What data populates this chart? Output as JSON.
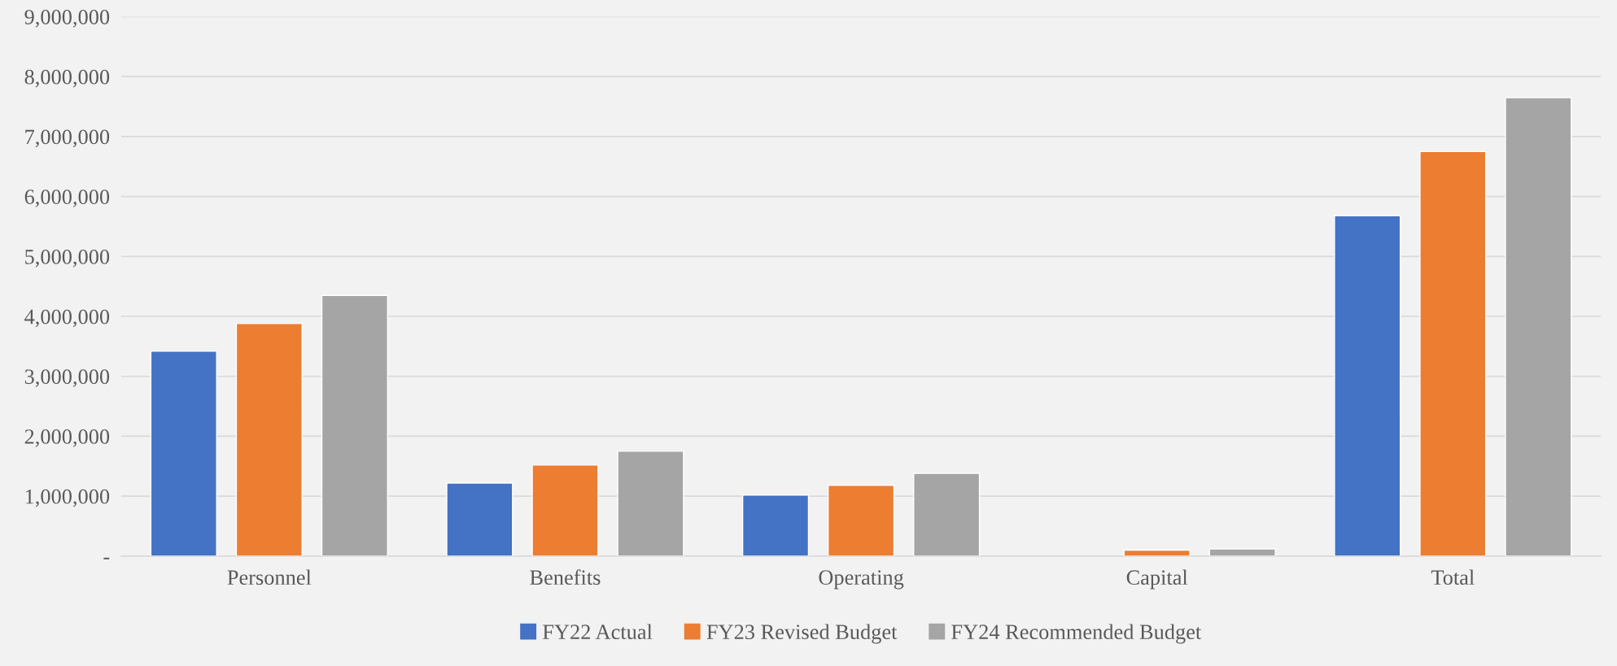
{
  "chart_data": {
    "type": "bar",
    "categories": [
      "Personnel",
      "Benefits",
      "Operating",
      "Capital",
      "Total"
    ],
    "series": [
      {
        "name": "FY22 Actual",
        "color": "#4472c4",
        "values": [
          3420000,
          1220000,
          1020000,
          null,
          5680000
        ]
      },
      {
        "name": "FY23 Revised Budget",
        "color": "#ed7d31",
        "values": [
          3880000,
          1520000,
          1180000,
          100000,
          6750000
        ]
      },
      {
        "name": "FY24 Recommended Budget",
        "color": "#a5a5a5",
        "values": [
          4350000,
          1750000,
          1380000,
          120000,
          7650000
        ]
      }
    ],
    "ylim": [
      0,
      9000000
    ],
    "yticks": [
      {
        "value": 0,
        "label": "-"
      },
      {
        "value": 1000000,
        "label": "1,000,000"
      },
      {
        "value": 2000000,
        "label": "2,000,000"
      },
      {
        "value": 3000000,
        "label": "3,000,000"
      },
      {
        "value": 4000000,
        "label": "4,000,000"
      },
      {
        "value": 5000000,
        "label": "5,000,000"
      },
      {
        "value": 6000000,
        "label": "6,000,000"
      },
      {
        "value": 7000000,
        "label": "7,000,000"
      },
      {
        "value": 8000000,
        "label": "8,000,000"
      },
      {
        "value": 9000000,
        "label": "9,000,000"
      }
    ],
    "grid": "y",
    "legend": "bottom"
  }
}
